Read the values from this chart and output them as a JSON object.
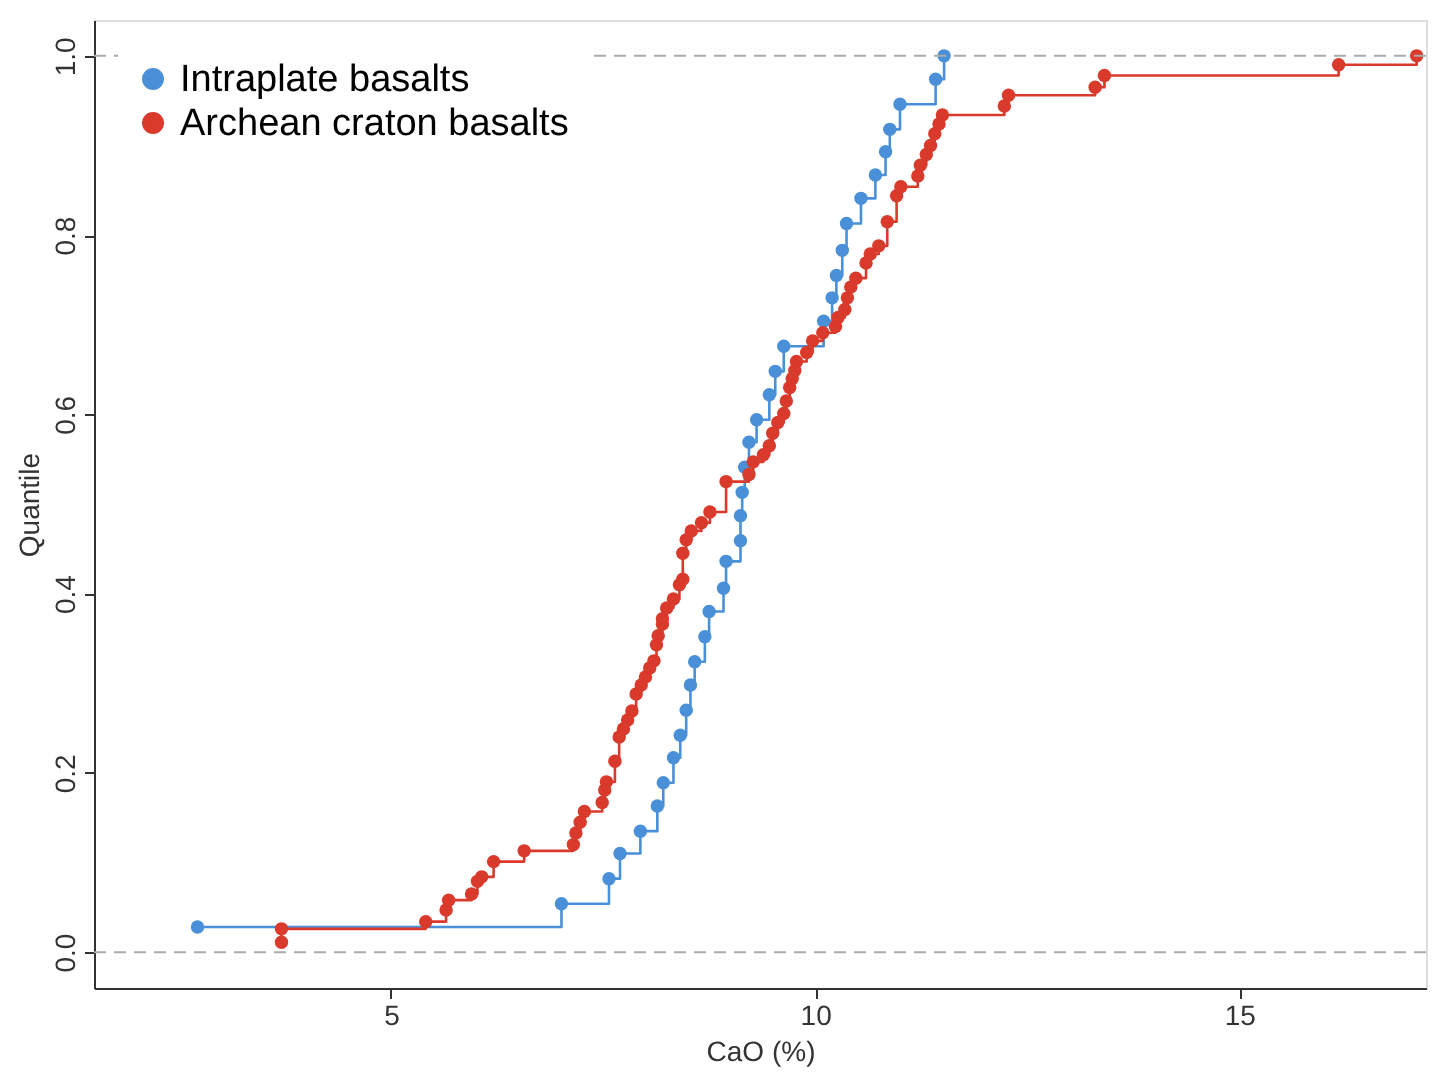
{
  "chart_data": {
    "type": "step",
    "xlabel": "CaO (%)",
    "ylabel": "Quantile",
    "xlim": [
      1.5,
      17.2
    ],
    "xticks": [
      5,
      10,
      15
    ],
    "ylim": [
      -0.04,
      1.04
    ],
    "yticks": [
      {
        "value": 0,
        "label": "0.0"
      },
      {
        "value": 0.2,
        "label": "0.2"
      },
      {
        "value": 0.4,
        "label": "0.4"
      },
      {
        "value": 0.6,
        "label": "0.6"
      },
      {
        "value": 0.8,
        "label": "0.8"
      },
      {
        "value": 1,
        "label": "1.0"
      }
    ],
    "grid": false,
    "legend": "top left",
    "marker": "circle",
    "line_style": "solid",
    "ref_lines": [
      {
        "axis": "y",
        "value": 0,
        "label": null,
        "color": "#aaaaaa",
        "line_style": "dashed"
      },
      {
        "axis": "y",
        "value": 1,
        "label": null,
        "color": "#aaaaaa",
        "line_style": "dashed"
      }
    ],
    "series": [
      {
        "name": "Intraplate basalts",
        "color": "#4a90d9",
        "x": [
          2.72,
          7.01,
          7.57,
          7.7,
          7.94,
          8.14,
          8.21,
          8.33,
          8.41,
          8.48,
          8.53,
          8.58,
          8.7,
          8.75,
          8.92,
          8.95,
          9.12,
          9.12,
          9.14,
          9.17,
          9.22,
          9.31,
          9.46,
          9.53,
          9.63,
          10.1,
          10.2,
          10.25,
          10.32,
          10.37,
          10.54,
          10.71,
          10.83,
          10.88,
          11.0,
          11.42,
          11.52
        ],
        "values": [
          0.028,
          0.054,
          0.082,
          0.11,
          0.135,
          0.163,
          0.189,
          0.217,
          0.242,
          0.27,
          0.298,
          0.324,
          0.352,
          0.38,
          0.406,
          0.436,
          0.459,
          0.487,
          0.513,
          0.541,
          0.569,
          0.594,
          0.622,
          0.648,
          0.676,
          0.704,
          0.73,
          0.755,
          0.783,
          0.813,
          0.841,
          0.867,
          0.893,
          0.918,
          0.946,
          0.974,
          1.0
        ]
      },
      {
        "name": "Archean craton basalts",
        "color": "#d93a2b",
        "x": [
          3.71,
          3.71,
          5.41,
          5.65,
          5.68,
          5.95,
          6.02,
          6.07,
          6.21,
          6.57,
          7.15,
          7.18,
          7.23,
          7.28,
          7.49,
          7.52,
          7.54,
          7.64,
          7.69,
          7.74,
          7.79,
          7.84,
          7.89,
          7.95,
          8.0,
          8.05,
          8.1,
          8.13,
          8.15,
          8.2,
          8.2,
          8.25,
          8.33,
          8.4,
          8.44,
          8.44,
          8.48,
          8.54,
          8.66,
          8.76,
          8.95,
          9.22,
          9.27,
          9.39,
          9.46,
          9.5,
          9.56,
          9.63,
          9.66,
          9.7,
          9.73,
          9.76,
          9.78,
          9.9,
          9.97,
          10.09,
          10.24,
          10.27,
          10.35,
          10.38,
          10.42,
          10.48,
          10.6,
          10.65,
          10.75,
          10.85,
          10.96,
          11.01,
          11.21,
          11.24,
          11.31,
          11.36,
          11.41,
          11.46,
          11.5,
          12.23,
          12.28,
          13.3,
          13.41,
          16.17,
          17.09
        ],
        "values": [
          0.011,
          0.026,
          0.034,
          0.047,
          0.058,
          0.065,
          0.079,
          0.084,
          0.101,
          0.113,
          0.12,
          0.133,
          0.145,
          0.157,
          0.167,
          0.181,
          0.19,
          0.213,
          0.24,
          0.249,
          0.259,
          0.269,
          0.288,
          0.298,
          0.307,
          0.317,
          0.325,
          0.343,
          0.353,
          0.366,
          0.372,
          0.384,
          0.394,
          0.41,
          0.416,
          0.445,
          0.46,
          0.47,
          0.479,
          0.491,
          0.525,
          0.533,
          0.547,
          0.555,
          0.565,
          0.579,
          0.591,
          0.601,
          0.615,
          0.63,
          0.64,
          0.649,
          0.659,
          0.669,
          0.682,
          0.691,
          0.698,
          0.708,
          0.717,
          0.73,
          0.742,
          0.752,
          0.769,
          0.779,
          0.788,
          0.815,
          0.844,
          0.854,
          0.866,
          0.878,
          0.89,
          0.9,
          0.913,
          0.924,
          0.934,
          0.944,
          0.956,
          0.965,
          0.978,
          0.99,
          1.0
        ]
      }
    ]
  }
}
